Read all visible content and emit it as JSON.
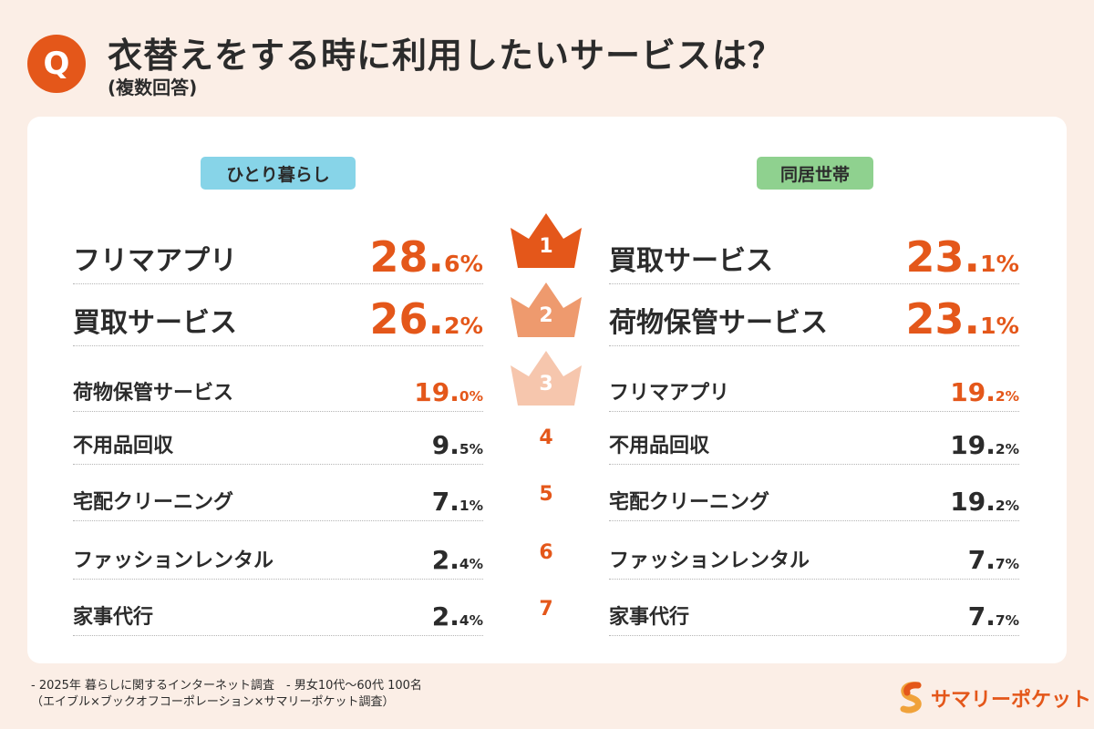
{
  "header": {
    "q_badge": "Q",
    "title": "衣替えをする時に利用したいサービスは？",
    "subtitle": "(複数回答)"
  },
  "left": {
    "tag": "ひとり暮らし",
    "tag_color": "#87d4e8",
    "rows": [
      {
        "label": "フリマアプリ",
        "num": "28.",
        "dec": "6%"
      },
      {
        "label": "買取サービス",
        "num": "26.",
        "dec": "2%"
      },
      {
        "label": "荷物保管サービス",
        "num": "19.",
        "dec": "0%"
      },
      {
        "label": "不用品回収",
        "num": "9.",
        "dec": "5%"
      },
      {
        "label": "宅配クリーニング",
        "num": "7.",
        "dec": "1%"
      },
      {
        "label": "ファッションレンタル",
        "num": "2.",
        "dec": "4%"
      },
      {
        "label": "家事代行",
        "num": "2.",
        "dec": "4%"
      }
    ]
  },
  "right": {
    "tag": "同居世帯",
    "tag_color": "#8fd18f",
    "rows": [
      {
        "label": "買取サービス",
        "num": "23.",
        "dec": "1%"
      },
      {
        "label": "荷物保管サービス",
        "num": "23.",
        "dec": "1%"
      },
      {
        "label": "フリマアプリ",
        "num": "19.",
        "dec": "2%"
      },
      {
        "label": "不用品回収",
        "num": "19.",
        "dec": "2%"
      },
      {
        "label": "宅配クリーニング",
        "num": "19.",
        "dec": "2%"
      },
      {
        "label": "ファッションレンタル",
        "num": "7.",
        "dec": "7%"
      },
      {
        "label": "家事代行",
        "num": "7.",
        "dec": "7%"
      }
    ]
  },
  "ranks": [
    "1",
    "2",
    "3",
    "4",
    "5",
    "6",
    "7"
  ],
  "crown_colors": [
    "#e4571a",
    "#ee9a6e",
    "#f6c6ad"
  ],
  "colors": {
    "accent": "#e4571a",
    "background": "#fbeee6"
  },
  "footnote": {
    "line1": "- 2025年 暮らしに関するインターネット調査　- 男女10代〜60代 100名",
    "line2": "（エイブル×ブックオフコーポレーション×サマリーポケット調査）"
  },
  "logo": {
    "text": "サマリーポケット",
    "icon": "s-logo-icon"
  }
}
